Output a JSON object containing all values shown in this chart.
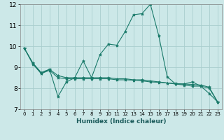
{
  "xlabel": "Humidex (Indice chaleur)",
  "bg_color": "#cce8e8",
  "grid_color": "#aacece",
  "line_color": "#1a7a6a",
  "xlim": [
    -0.5,
    23.5
  ],
  "ylim": [
    7,
    12
  ],
  "xticks": [
    0,
    1,
    2,
    3,
    4,
    5,
    6,
    7,
    8,
    9,
    10,
    11,
    12,
    13,
    14,
    15,
    16,
    17,
    18,
    19,
    20,
    21,
    22,
    23
  ],
  "yticks": [
    7,
    8,
    9,
    10,
    11,
    12
  ],
  "series": [
    {
      "x": [
        0,
        1,
        2,
        3,
        4,
        5,
        6,
        7,
        8,
        9,
        10,
        11,
        12,
        13,
        14,
        15,
        16,
        17,
        18,
        19,
        20,
        21,
        22,
        23
      ],
      "y": [
        9.9,
        9.2,
        8.7,
        8.9,
        7.6,
        8.3,
        8.5,
        9.3,
        8.5,
        9.6,
        10.1,
        10.05,
        10.7,
        11.5,
        11.55,
        12.0,
        10.5,
        8.55,
        8.2,
        8.2,
        8.3,
        8.1,
        7.75,
        7.35
      ]
    },
    {
      "x": [
        0,
        1,
        2,
        3,
        4,
        5,
        6,
        7,
        8,
        9,
        10,
        11,
        12,
        13,
        14,
        15,
        16,
        17,
        18,
        19,
        20,
        21,
        22,
        23
      ],
      "y": [
        9.9,
        9.2,
        8.75,
        8.9,
        8.6,
        8.5,
        8.5,
        8.5,
        8.5,
        8.5,
        8.5,
        8.45,
        8.45,
        8.4,
        8.4,
        8.35,
        8.3,
        8.25,
        8.2,
        8.15,
        8.1,
        8.1,
        8.0,
        7.35
      ]
    },
    {
      "x": [
        0,
        1,
        2,
        3,
        4,
        5,
        6,
        7,
        8,
        9,
        10,
        11,
        12,
        13,
        14,
        15,
        16,
        17,
        18,
        19,
        20,
        21,
        22,
        23
      ],
      "y": [
        9.9,
        9.15,
        8.7,
        8.85,
        8.5,
        8.45,
        8.45,
        8.45,
        8.45,
        8.45,
        8.45,
        8.4,
        8.4,
        8.38,
        8.35,
        8.3,
        8.28,
        8.25,
        8.22,
        8.2,
        8.18,
        8.15,
        8.05,
        7.35
      ]
    }
  ]
}
